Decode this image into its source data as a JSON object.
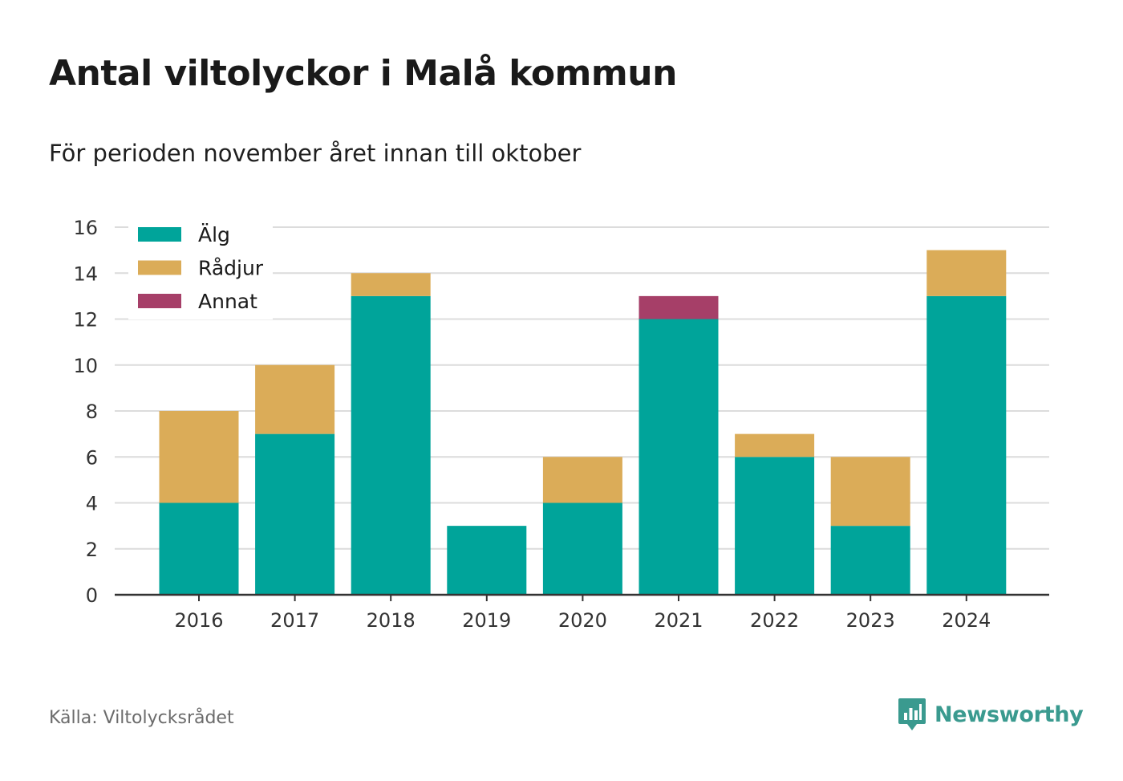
{
  "header": {
    "title": "Antal viltolyckor i Malå kommun",
    "subtitle": "För perioden november året innan till oktober"
  },
  "footer": {
    "source": "Källa: Viltolycksrådet",
    "brand": "Newsworthy",
    "brand_color": "#3a9a8f"
  },
  "chart_data": {
    "type": "bar",
    "stacked": true,
    "categories": [
      "2016",
      "2017",
      "2018",
      "2019",
      "2020",
      "2021",
      "2022",
      "2023",
      "2024"
    ],
    "series": [
      {
        "name": "Älg",
        "color": "#00a49a",
        "values": [
          4,
          7,
          13,
          3,
          4,
          12,
          6,
          3,
          13
        ]
      },
      {
        "name": "Rådjur",
        "color": "#dbac58",
        "values": [
          4,
          3,
          1,
          0,
          2,
          0,
          1,
          3,
          2
        ]
      },
      {
        "name": "Annat",
        "color": "#a63f68",
        "values": [
          0,
          0,
          0,
          0,
          0,
          1,
          0,
          0,
          0
        ]
      }
    ],
    "ylim": [
      0,
      16
    ],
    "yticks": [
      0,
      2,
      4,
      6,
      8,
      10,
      12,
      14,
      16
    ],
    "grid": true,
    "legend_position": "top-left"
  }
}
